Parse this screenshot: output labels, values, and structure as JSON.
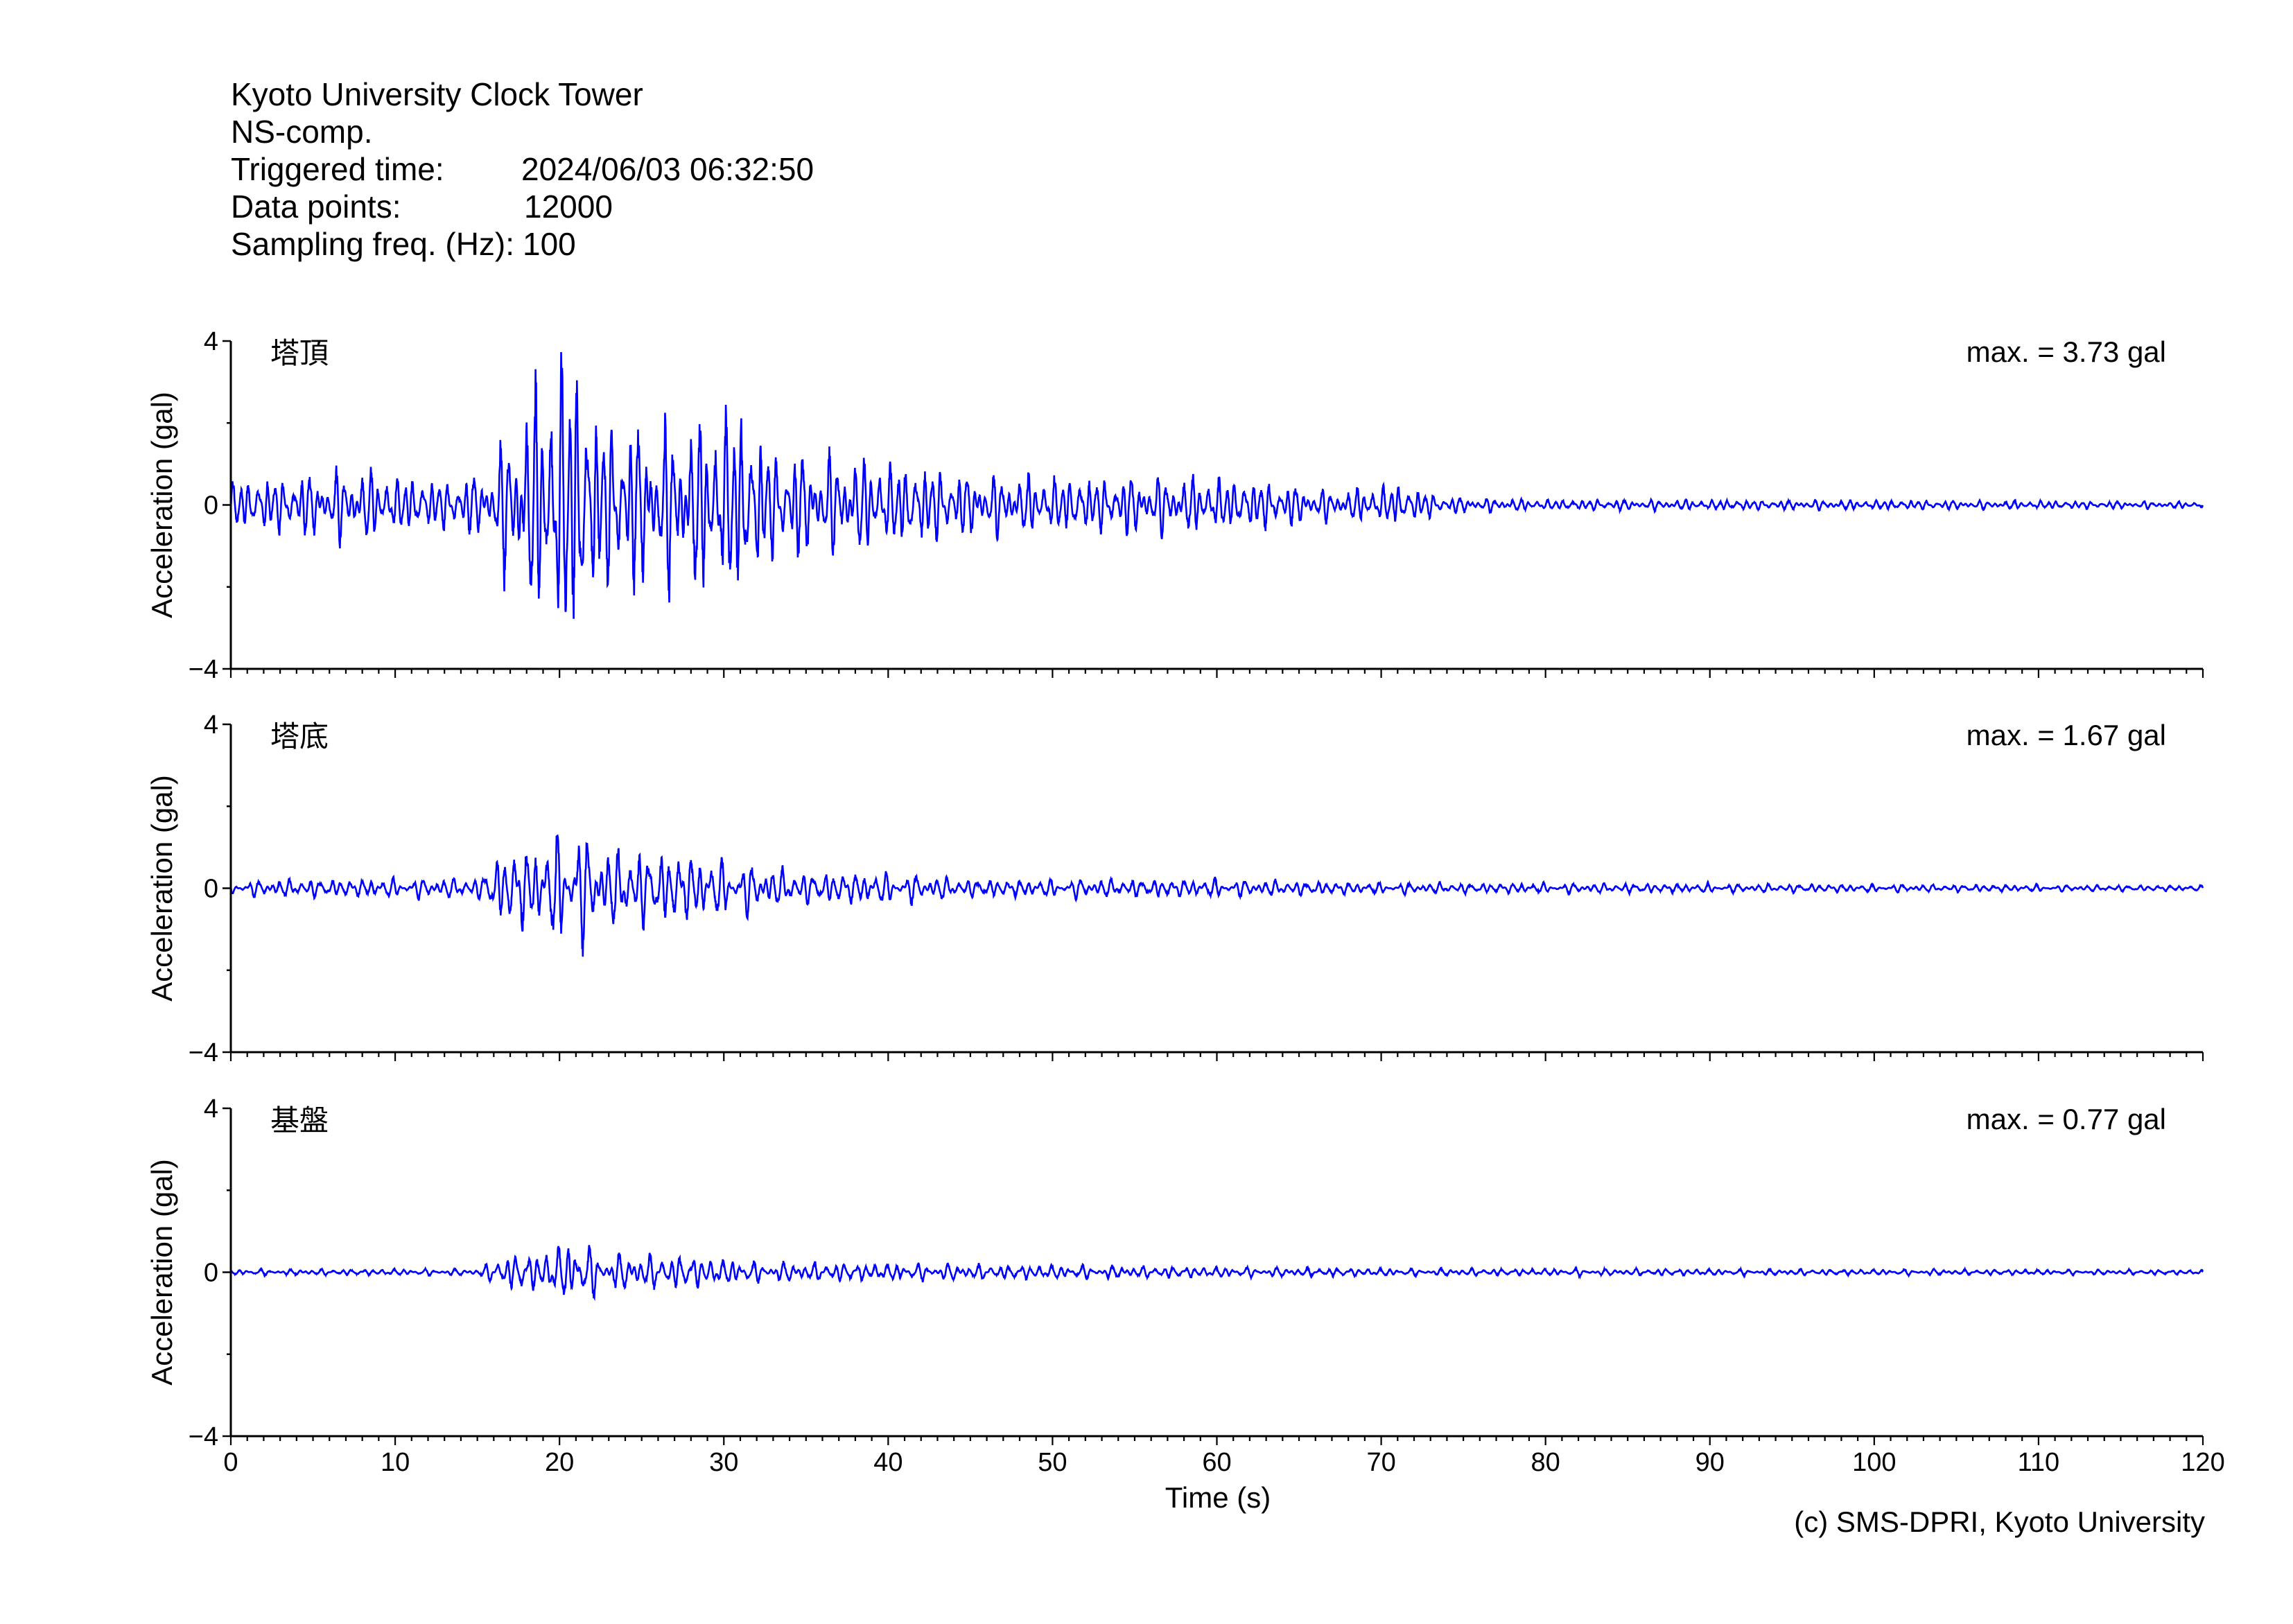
{
  "header": {
    "title": "Kyoto University Clock Tower",
    "component": "NS-comp.",
    "triggered_label": "Triggered time:",
    "triggered_value": "2024/06/03 06:32:50",
    "points_label": "Data points:",
    "points_value": "12000",
    "freq_label": "Sampling freq. (Hz):",
    "freq_value": "100"
  },
  "copyright": "(c) SMS-DPRI, Kyoto University",
  "colors": {
    "trace": "#0000ff",
    "axis": "#000000"
  },
  "chart_data": {
    "type": "line",
    "xlabel": "Time (s)",
    "xlim": [
      0,
      120
    ],
    "x_ticks": [
      "0",
      "10",
      "20",
      "30",
      "40",
      "50",
      "60",
      "70",
      "80",
      "90",
      "100",
      "110",
      "120"
    ],
    "grid": false,
    "panels": [
      {
        "name": "塔頂",
        "max_text": "max. = 3.73 gal",
        "max": 3.73,
        "ylabel": "Acceleration (gal)",
        "ylim": [
          -4,
          4
        ],
        "y_ticks": [
          "4",
          "0",
          "−4"
        ],
        "envelope": [
          [
            0,
            0.6
          ],
          [
            5,
            0.8
          ],
          [
            8,
            0.9
          ],
          [
            12,
            0.6
          ],
          [
            15.5,
            0.8
          ],
          [
            17,
            2.0
          ],
          [
            19.8,
            3.7
          ],
          [
            21,
            3.6
          ],
          [
            22.5,
            2.2
          ],
          [
            26,
            2.0
          ],
          [
            31,
            2.4
          ],
          [
            33,
            1.4
          ],
          [
            40,
            1.1
          ],
          [
            45,
            0.8
          ],
          [
            50,
            0.7
          ],
          [
            58,
            0.7
          ],
          [
            63,
            0.6
          ],
          [
            67,
            0.35
          ],
          [
            71,
            0.5
          ],
          [
            74,
            0.2
          ],
          [
            80,
            0.13
          ],
          [
            100,
            0.12
          ],
          [
            120,
            0.08
          ]
        ]
      },
      {
        "name": "塔底",
        "max_text": "max. = 1.67 gal",
        "max": 1.67,
        "ylabel": "Acceleration (gal)",
        "ylim": [
          -4,
          4
        ],
        "y_ticks": [
          "4",
          "0",
          "−4"
        ],
        "envelope": [
          [
            0,
            0.18
          ],
          [
            15,
            0.22
          ],
          [
            16.5,
            0.8
          ],
          [
            19,
            1.0
          ],
          [
            21,
            1.6
          ],
          [
            22,
            0.9
          ],
          [
            27,
            0.8
          ],
          [
            30,
            0.6
          ],
          [
            35,
            0.35
          ],
          [
            40,
            0.35
          ],
          [
            45,
            0.2
          ],
          [
            60,
            0.2
          ],
          [
            70,
            0.12
          ],
          [
            90,
            0.1
          ],
          [
            120,
            0.06
          ]
        ]
      },
      {
        "name": "基盤",
        "max_text": "max. = 0.77 gal",
        "max": 0.77,
        "ylabel": "Acceleration (gal)",
        "ylim": [
          -4,
          4
        ],
        "y_ticks": [
          "4",
          "0",
          "−4"
        ],
        "envelope": [
          [
            0,
            0.06
          ],
          [
            15,
            0.07
          ],
          [
            16.5,
            0.35
          ],
          [
            19,
            0.45
          ],
          [
            21,
            0.75
          ],
          [
            22.5,
            0.4
          ],
          [
            28,
            0.35
          ],
          [
            32,
            0.22
          ],
          [
            40,
            0.18
          ],
          [
            55,
            0.13
          ],
          [
            70,
            0.08
          ],
          [
            120,
            0.05
          ]
        ]
      }
    ]
  }
}
